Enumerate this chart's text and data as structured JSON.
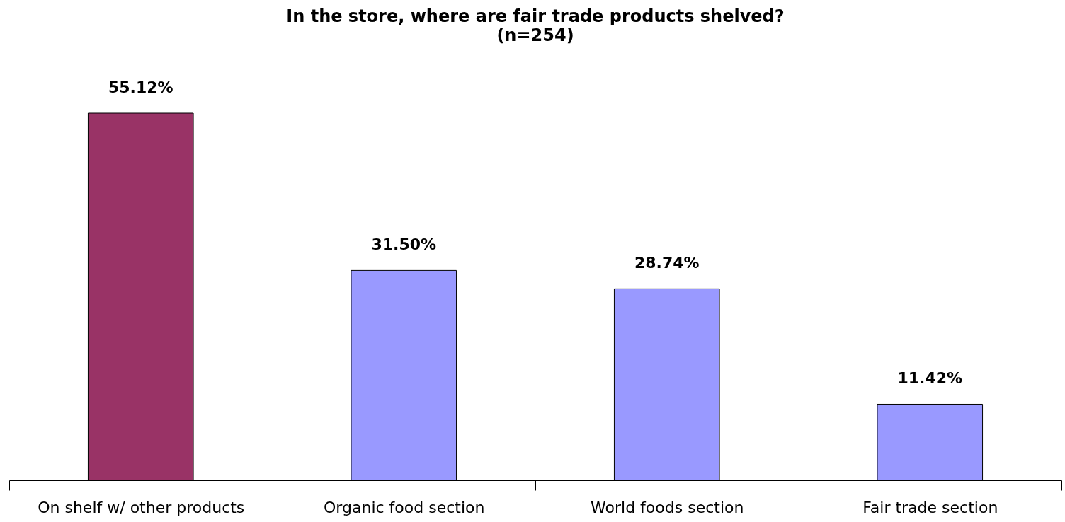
{
  "chart_data": {
    "type": "bar",
    "title": "In the store, where are fair trade products shelved?",
    "subtitle": "(n=254)",
    "categories": [
      "On shelf w/ other products",
      "Organic food section",
      "World foods section",
      "Fair trade section"
    ],
    "values": [
      55.12,
      31.5,
      28.74,
      11.42
    ],
    "value_labels": [
      "55.12%",
      "31.50%",
      "28.74%",
      "11.42%"
    ],
    "colors": [
      "#993366",
      "#9999ff",
      "#9999ff",
      "#9999ff"
    ],
    "grid": false
  }
}
